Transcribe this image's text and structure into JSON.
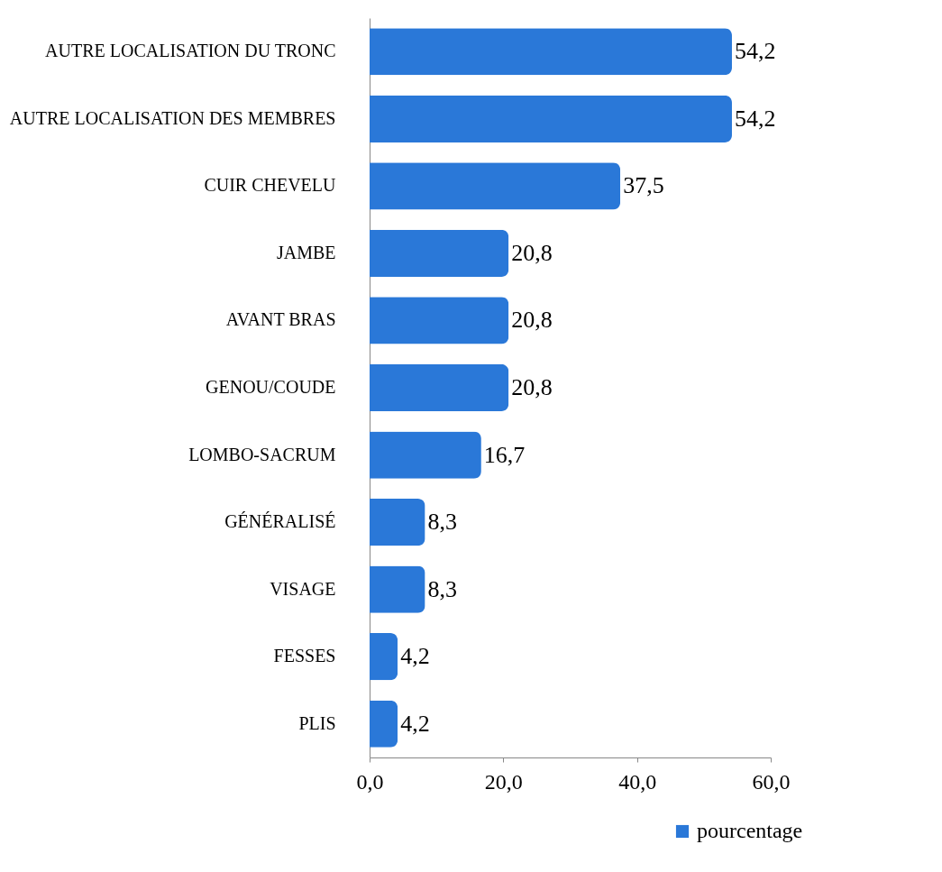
{
  "chart_data": {
    "type": "bar",
    "orientation": "horizontal",
    "categories": [
      "AUTRE LOCALISATION DU TRONC",
      "AUTRE LOCALISATION DES MEMBRES",
      "CUIR CHEVELU",
      "JAMBE",
      "AVANT BRAS",
      "GENOU/COUDE",
      "LOMBO-SACRUM",
      "GÉNÉRALISÉ",
      "VISAGE",
      "FESSES",
      "PLIS"
    ],
    "series": [
      {
        "name": "pourcentage",
        "color": "#2a78d8",
        "values": [
          54.2,
          54.2,
          37.5,
          20.8,
          20.8,
          20.8,
          16.7,
          8.3,
          8.3,
          4.2,
          4.2
        ],
        "value_labels": [
          "54,2",
          "54,2",
          "37,5",
          "20,8",
          "20,8",
          "20,8",
          "16,7",
          "8,3",
          "8,3",
          "4,2",
          "4,2"
        ]
      }
    ],
    "xlim": [
      0,
      60
    ],
    "xticks": [
      {
        "value": 0,
        "label": "0,0"
      },
      {
        "value": 20,
        "label": "20,0"
      },
      {
        "value": 40,
        "label": "40,0"
      },
      {
        "value": 60,
        "label": "60,0"
      }
    ],
    "grid": false,
    "legend": "bottom right"
  }
}
